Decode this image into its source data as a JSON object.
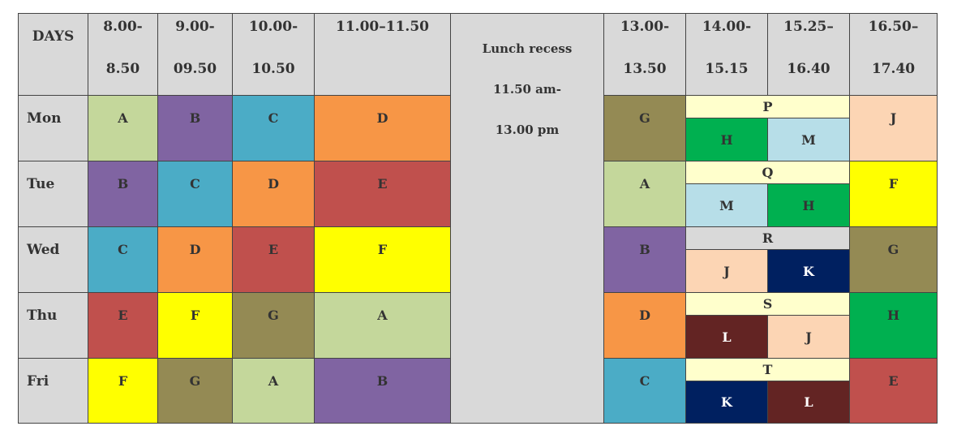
{
  "colors": {
    "A": "#c4d79b",
    "B": "#8064a2",
    "C": "#4bacc6",
    "D": "#f79646",
    "E": "#c0504d",
    "F": "#ffff00",
    "G": "#948a54",
    "H": "#00b050",
    "J": "#fcd5b4",
    "K": "#002060",
    "L": "#632423",
    "M": "#b7dee8",
    "P": "#ffffcc",
    "Q": "#ffffcc",
    "R": "#d9d9d9",
    "S": "#ffffcc",
    "T": "#ffffcc"
  },
  "header": {
    "days": "DAYS",
    "slots": [
      {
        "start": "8.00-",
        "end": "8.50"
      },
      {
        "start": "9.00-",
        "end": "09.50"
      },
      {
        "start": "10.00-",
        "end": "10.50"
      },
      {
        "start": "11.00–11.50",
        "end": ""
      },
      {
        "start": "13.00-",
        "end": "13.50"
      },
      {
        "start": "14.00-",
        "end": "15.15"
      },
      {
        "start": "15.25–",
        "end": "16.40"
      },
      {
        "start": "16.50–",
        "end": "17.40"
      }
    ],
    "lunch": [
      "Lunch recess",
      "11.50 am-",
      "13.00 pm"
    ]
  },
  "rows": [
    {
      "day": "Mon",
      "morning": [
        "A",
        "B",
        "C",
        "D"
      ],
      "after": "G",
      "group": "P",
      "subs": [
        "H",
        "M"
      ],
      "last": "J"
    },
    {
      "day": "Tue",
      "morning": [
        "B",
        "C",
        "D",
        "E"
      ],
      "after": "A",
      "group": "Q",
      "subs": [
        "M",
        "H"
      ],
      "last": "F"
    },
    {
      "day": "Wed",
      "morning": [
        "C",
        "D",
        "E",
        "F"
      ],
      "after": "B",
      "group": "R",
      "subs": [
        "J",
        "K"
      ],
      "last": "G"
    },
    {
      "day": "Thu",
      "morning": [
        "E",
        "F",
        "G",
        "A"
      ],
      "after": "D",
      "group": "S",
      "subs": [
        "L",
        "J"
      ],
      "last": "H"
    },
    {
      "day": "Fri",
      "morning": [
        "F",
        "G",
        "A",
        "B"
      ],
      "after": "C",
      "group": "T",
      "subs": [
        "K",
        "L"
      ],
      "last": "E"
    }
  ]
}
